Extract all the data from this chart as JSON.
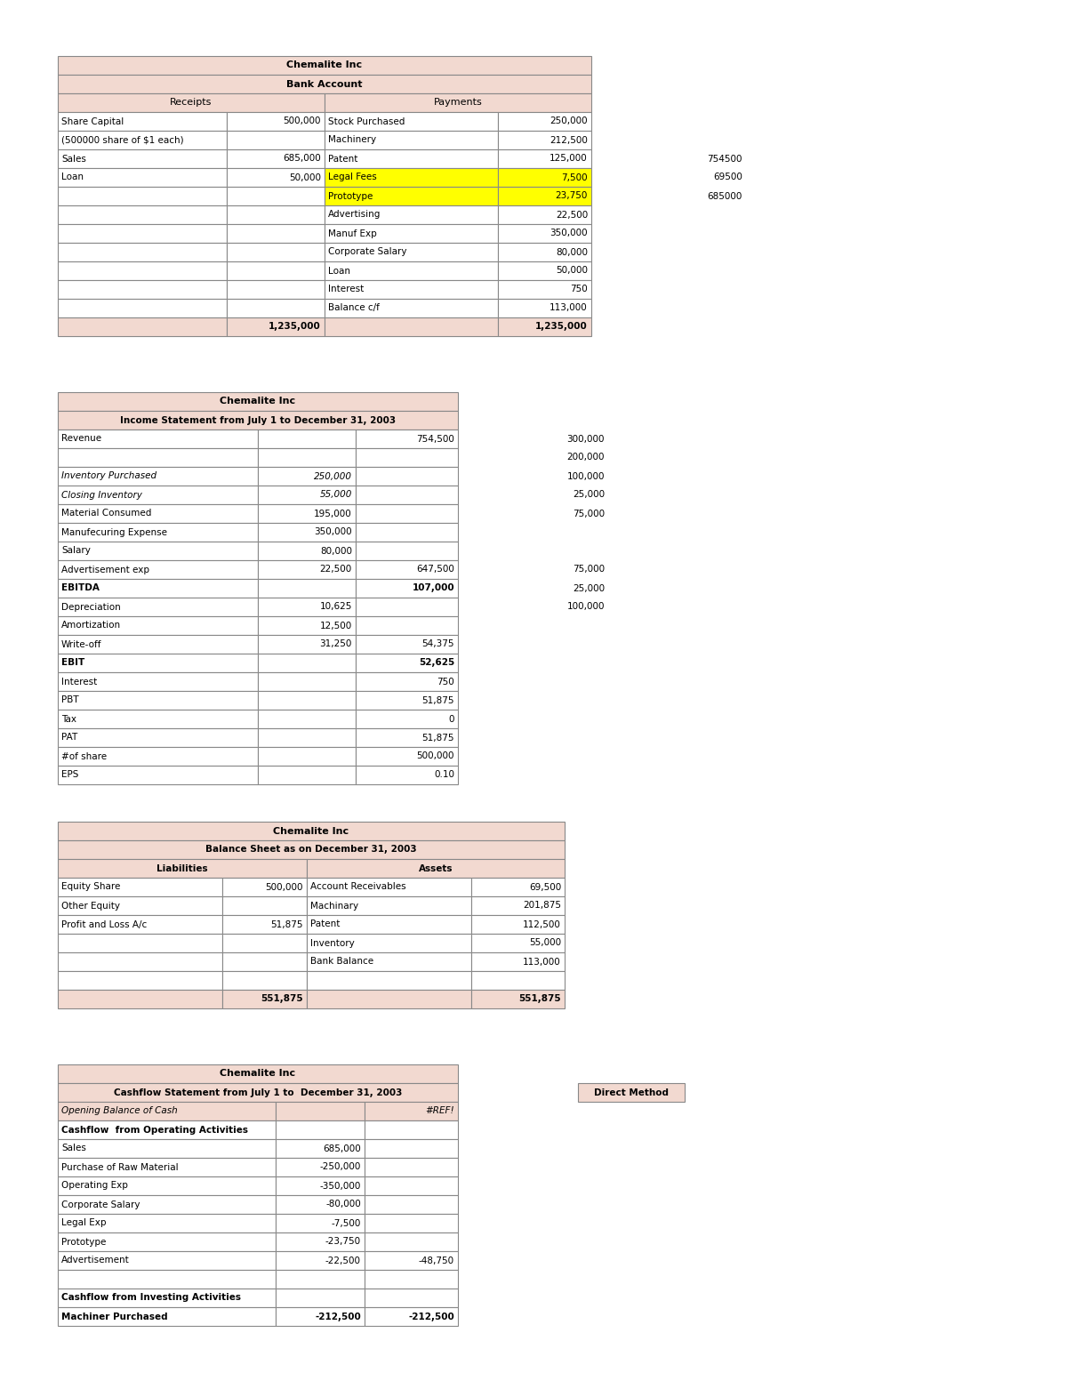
{
  "bg_color": "#e8e8e8",
  "table_bg": "#ffffff",
  "header_color": "#f2d9d0",
  "yellow": "#ffff00",
  "grid_color": "#aaaaaa",
  "cell_border": "#888888",
  "bank_title": "Chemalite Inc",
  "bank_subtitle": "Bank Account",
  "bank_rows": [
    [
      "Share Capital",
      "500,000",
      "Stock Purchased",
      "250,000",
      false,
      false
    ],
    [
      "(500000 share of $1 each)",
      "",
      "Machinery",
      "212,500",
      false,
      false
    ],
    [
      "Sales",
      "685,000",
      "Patent",
      "125,000",
      false,
      false
    ],
    [
      "Loan",
      "50,000",
      "Legal Fees",
      "7,500",
      true,
      true
    ],
    [
      "",
      "",
      "Prototype",
      "23,750",
      true,
      true
    ],
    [
      "",
      "",
      "Advertising",
      "22,500",
      false,
      false
    ],
    [
      "",
      "",
      "Manuf Exp",
      "350,000",
      false,
      false
    ],
    [
      "",
      "",
      "Corporate Salary",
      "80,000",
      false,
      false
    ],
    [
      "",
      "",
      "Loan",
      "50,000",
      false,
      false
    ],
    [
      "",
      "",
      "Interest",
      "750",
      false,
      false
    ],
    [
      "",
      "",
      "Balance c/f",
      "113,000",
      false,
      false
    ]
  ],
  "bank_total_row": [
    "",
    "1,235,000",
    "",
    "1,235,000"
  ],
  "bank_side_vals": [
    [
      "754500",
      3
    ],
    [
      "69500",
      4
    ],
    [
      "685000",
      5
    ]
  ],
  "income_title": "Chemalite Inc",
  "income_subtitle": "Income Statement from July 1 to December 31, 2003",
  "income_rows": [
    [
      "Revenue",
      "",
      "754,500",
      false,
      false,
      "300,000"
    ],
    [
      "",
      "",
      "",
      false,
      false,
      "200,000"
    ],
    [
      "Inventory Purchased",
      "250,000",
      "",
      true,
      false,
      "100,000"
    ],
    [
      "Closing Inventory",
      "55,000",
      "",
      true,
      false,
      "25,000"
    ],
    [
      "Material Consumed",
      "195,000",
      "",
      false,
      false,
      "75,000"
    ],
    [
      "Manufecuring Expense",
      "350,000",
      "",
      false,
      false,
      ""
    ],
    [
      "Salary",
      "80,000",
      "",
      false,
      false,
      ""
    ],
    [
      "Advertisement exp",
      "22,500",
      "647,500",
      false,
      false,
      "75,000"
    ],
    [
      "EBITDA",
      "",
      "107,000",
      false,
      true,
      "25,000"
    ],
    [
      "Depreciation",
      "10,625",
      "",
      false,
      false,
      "100,000"
    ],
    [
      "Amortization",
      "12,500",
      "",
      false,
      false,
      ""
    ],
    [
      "Write-off",
      "31,250",
      "54,375",
      false,
      false,
      ""
    ],
    [
      "EBIT",
      "",
      "52,625",
      false,
      true,
      ""
    ],
    [
      "Interest",
      "",
      "750",
      false,
      false,
      ""
    ],
    [
      "PBT",
      "",
      "51,875",
      false,
      false,
      ""
    ],
    [
      "Tax",
      "",
      "0",
      false,
      false,
      ""
    ],
    [
      "PAT",
      "",
      "51,875",
      false,
      false,
      ""
    ],
    [
      "#of share",
      "",
      "500,000",
      false,
      false,
      ""
    ],
    [
      "EPS",
      "",
      "0.10",
      false,
      false,
      ""
    ]
  ],
  "balance_title": "Chemalite Inc",
  "balance_subtitle": "Balance Sheet as on December 31, 2003",
  "balance_rows": [
    [
      "Equity Share",
      "500,000",
      "Account Receivables",
      "69,500"
    ],
    [
      "Other Equity",
      "",
      "Machinary",
      "201,875"
    ],
    [
      "Profit and Loss A/c",
      "51,875",
      "Patent",
      "112,500"
    ],
    [
      "",
      "",
      "Inventory",
      "55,000"
    ],
    [
      "",
      "",
      "Bank Balance",
      "113,000"
    ],
    [
      "",
      "",
      "",
      ""
    ],
    [
      "",
      "551,875",
      "",
      "551,875"
    ]
  ],
  "cashflow_title": "Chemalite Inc",
  "cashflow_subtitle": "Cashflow Statement from July 1 to  December 31, 2003",
  "cashflow_direct": "Direct Method",
  "cashflow_rows": [
    [
      "Opening Balance of Cash",
      "",
      "#REF!",
      "italic_bg",
      false,
      false
    ],
    [
      "Cashflow  from Operating Activities",
      "",
      "",
      "normal",
      true,
      false
    ],
    [
      "Sales",
      "685,000",
      "",
      "normal",
      false,
      false
    ],
    [
      "Purchase of Raw Material",
      "-250,000",
      "",
      "normal",
      false,
      false
    ],
    [
      "Operating Exp",
      "-350,000",
      "",
      "normal",
      false,
      false
    ],
    [
      "Corporate Salary",
      "-80,000",
      "",
      "normal",
      false,
      false
    ],
    [
      "Legal Exp",
      "-7,500",
      "",
      "normal",
      false,
      false
    ],
    [
      "Prototype",
      "-23,750",
      "",
      "normal",
      false,
      false
    ],
    [
      "Advertisement",
      "-22,500",
      "-48,750",
      "normal",
      false,
      false
    ],
    [
      "",
      "",
      "",
      "normal",
      false,
      false
    ],
    [
      "Cashflow from Investing Activities",
      "",
      "",
      "normal",
      true,
      false
    ],
    [
      "Machiner Purchased",
      "-212,500",
      "-212,500",
      "normal",
      false,
      true
    ]
  ]
}
